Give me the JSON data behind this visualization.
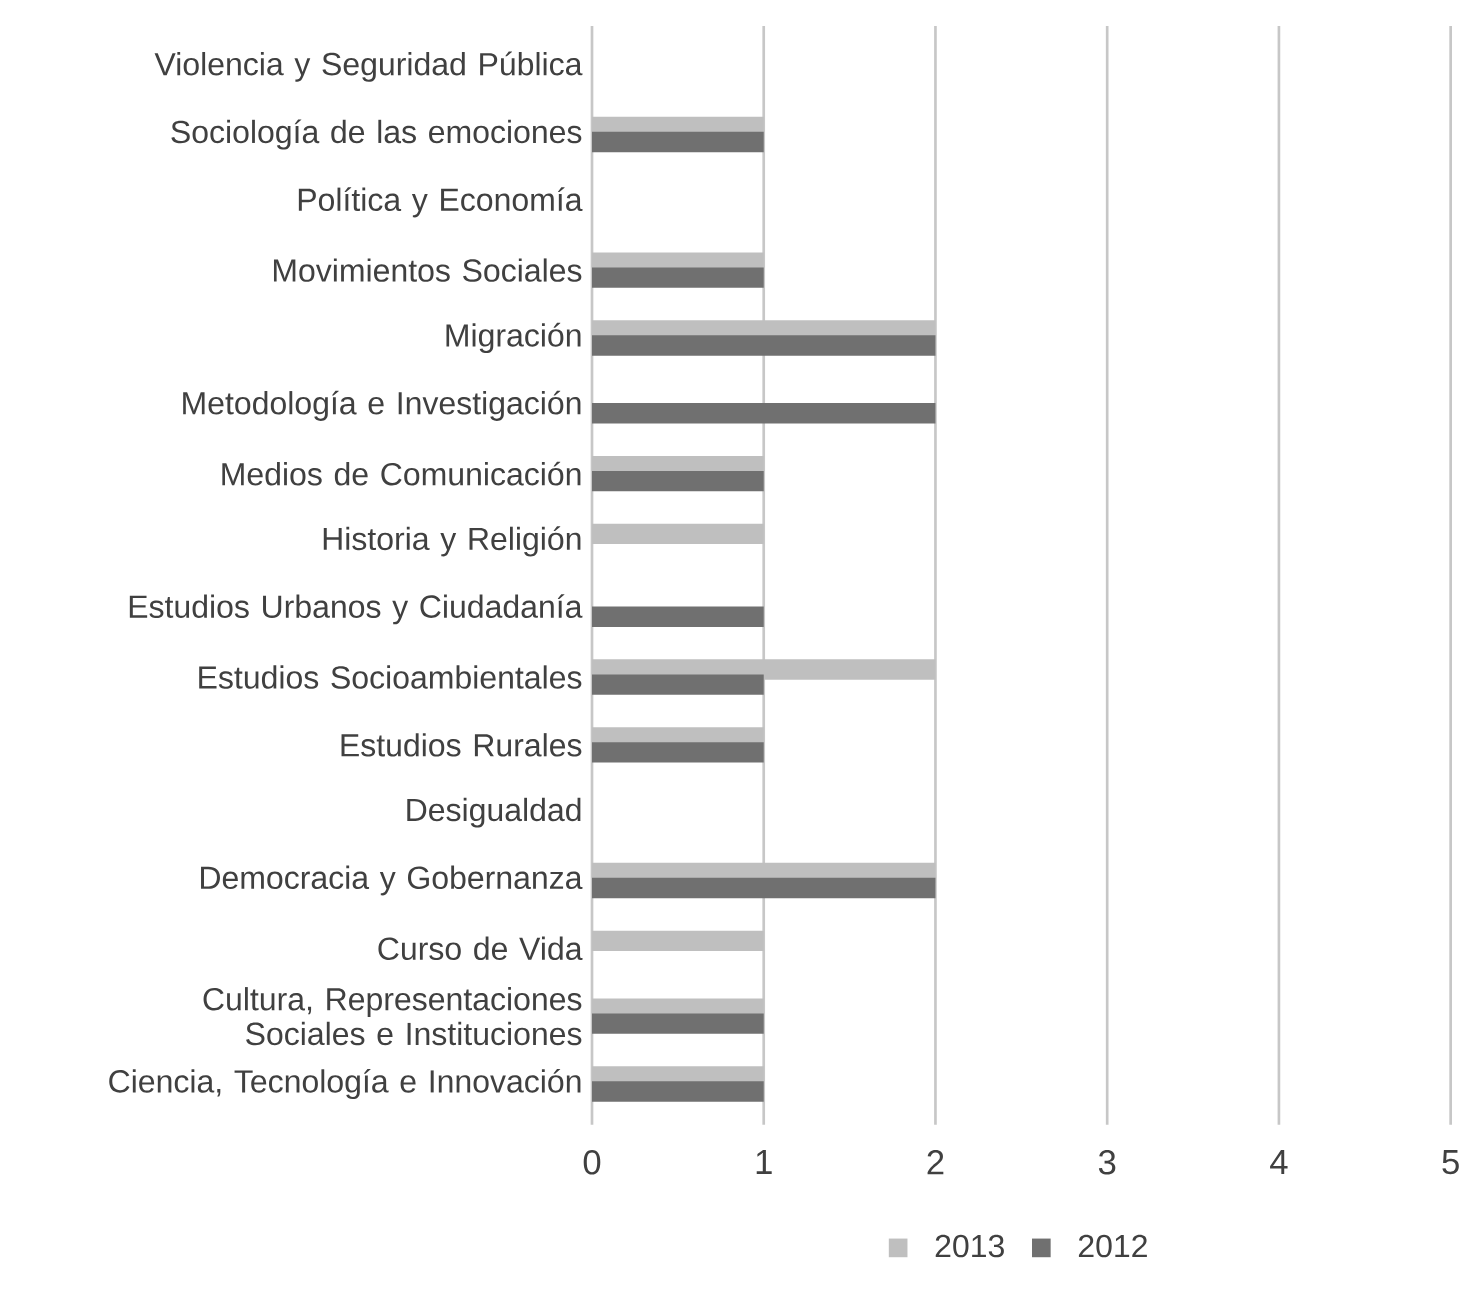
{
  "chart_data": {
    "type": "bar",
    "orientation": "horizontal",
    "categories": [
      "Violencia y Seguridad Pública",
      "Sociología de las emociones",
      "Política y Economía",
      "Movimientos Sociales",
      "Migración",
      "Metodología e Investigación",
      "Medios de Comunicación",
      "Historia y Religión",
      "Estudios Urbanos y Ciudadanía",
      "Estudios Socioambientales",
      "Estudios Rurales",
      "Desigualdad",
      "Democracia y Gobernanza",
      "Curso de Vida",
      "Cultura, Representaciones Sociales e Instituciones",
      "Ciencia, Tecnología e Innovación"
    ],
    "series": [
      {
        "name": "2013",
        "color": "#bfbfbf",
        "values": [
          0,
          1,
          0,
          1,
          2,
          0,
          1,
          1,
          0,
          2,
          1,
          0,
          2,
          1,
          1,
          1
        ]
      },
      {
        "name": "2012",
        "color": "#707070",
        "values": [
          0,
          1,
          0,
          1,
          2,
          2,
          1,
          0,
          1,
          1,
          1,
          0,
          2,
          0,
          1,
          1
        ]
      }
    ],
    "xlim": [
      0,
      5
    ],
    "xticks": [
      0,
      1,
      2,
      3,
      4,
      5
    ],
    "grid": "x",
    "legend": "bottom"
  }
}
